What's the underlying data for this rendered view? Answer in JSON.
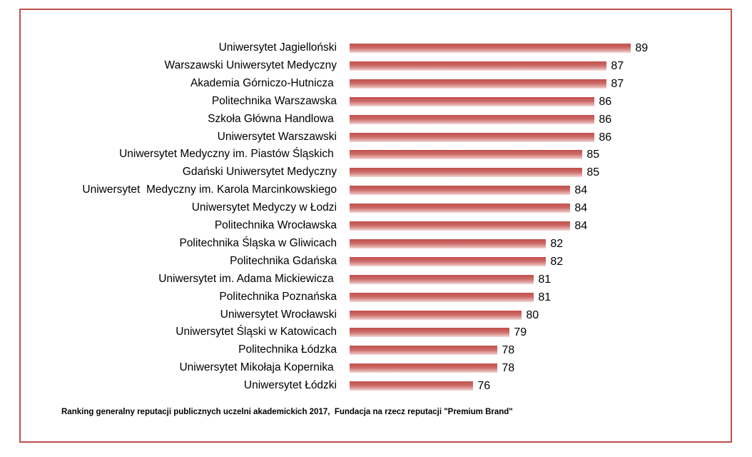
{
  "chart_data": {
    "type": "bar",
    "orientation": "horizontal",
    "categories": [
      "Uniwersytet Jagielloński",
      "Warszawski Uniwersytet Medyczny",
      "Akademia Górniczo-Hutnicza ",
      "Politechnika Warszawska",
      "Szkoła Główna Handlowa ",
      "Uniwersytet Warszawski",
      "Uniwersytet Medyczny im. Piastów Śląskich ",
      "Gdański Uniwersytet Medyczny",
      "Uniwersytet  Medyczny im. Karola Marcinkowskiego",
      "Uniwersytet Medyczy w Łodzi",
      "Politechnika Wrocławska",
      "Politechnika Śląska w Gliwicach",
      "Politechnika Gdańska",
      "Uniwersytet im. Adama Mickiewicza ",
      "Politechnika Poznańska",
      "Uniwersytet Wrocławski",
      "Uniwersytet Śląski w Katowicach",
      "Politechnika Łódzka",
      "Uniwersytet Mikołaja Kopernika ",
      "Uniwersytet Łódzki"
    ],
    "values": [
      89,
      87,
      87,
      86,
      86,
      86,
      85,
      85,
      84,
      84,
      84,
      82,
      82,
      81,
      81,
      80,
      79,
      78,
      78,
      76
    ],
    "xlim": [
      65.8,
      90
    ],
    "data_labels": true,
    "grid": false,
    "legend": "none",
    "bar_color": "#c0504d",
    "caption": "Ranking generalny reputacji publicznych uczelni akademickich 2017,  Fundacja na rzecz reputacji \"Premium Brand\""
  }
}
